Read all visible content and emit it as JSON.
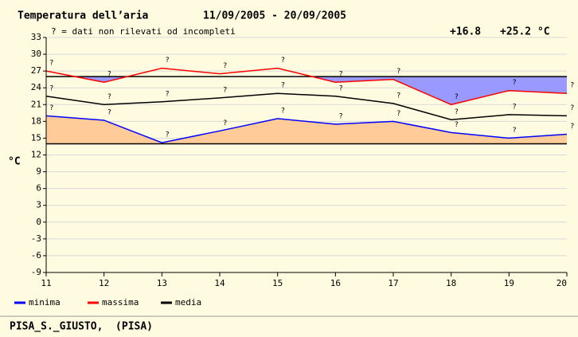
{
  "chart_data": {
    "type": "line",
    "title": "Temperatura dell’aria",
    "subtitle": "11/09/2005 - 20/09/2005",
    "note": "? = dati non rilevati od incompleti",
    "missing_mark": "?",
    "summary": [
      "+16.8",
      "+25.2 °C"
    ],
    "y_label": "°C",
    "footer": "PISA_S._GIUSTO,  (PISA)",
    "x": [
      11,
      12,
      13,
      14,
      15,
      16,
      17,
      18,
      19,
      20
    ],
    "xlim": [
      11,
      20
    ],
    "xticks": [
      11,
      12,
      13,
      14,
      15,
      16,
      17,
      18,
      19,
      20
    ],
    "ylim": [
      -9,
      33
    ],
    "yticks": [
      -9,
      -6,
      -3,
      0,
      3,
      6,
      9,
      12,
      15,
      18,
      21,
      24,
      27,
      30,
      33
    ],
    "grid": true,
    "reference_lines": [
      26,
      14
    ],
    "series": [
      {
        "name": "minima",
        "color": "#0000ff",
        "fill": "#ffcc99",
        "values": [
          19,
          18.2,
          14.2,
          16.3,
          18.5,
          17.5,
          18,
          16,
          15,
          15.7
        ]
      },
      {
        "name": "massima",
        "color": "#ff0000",
        "fill": "#9999ff",
        "values": [
          27,
          25,
          27.5,
          26.5,
          27.5,
          25,
          25.5,
          21,
          23.5,
          23
        ]
      },
      {
        "name": "media",
        "color": "#000000",
        "values": [
          22.5,
          21,
          21.5,
          22.2,
          23,
          22.5,
          21.2,
          18.3,
          19.2,
          19
        ]
      }
    ]
  }
}
